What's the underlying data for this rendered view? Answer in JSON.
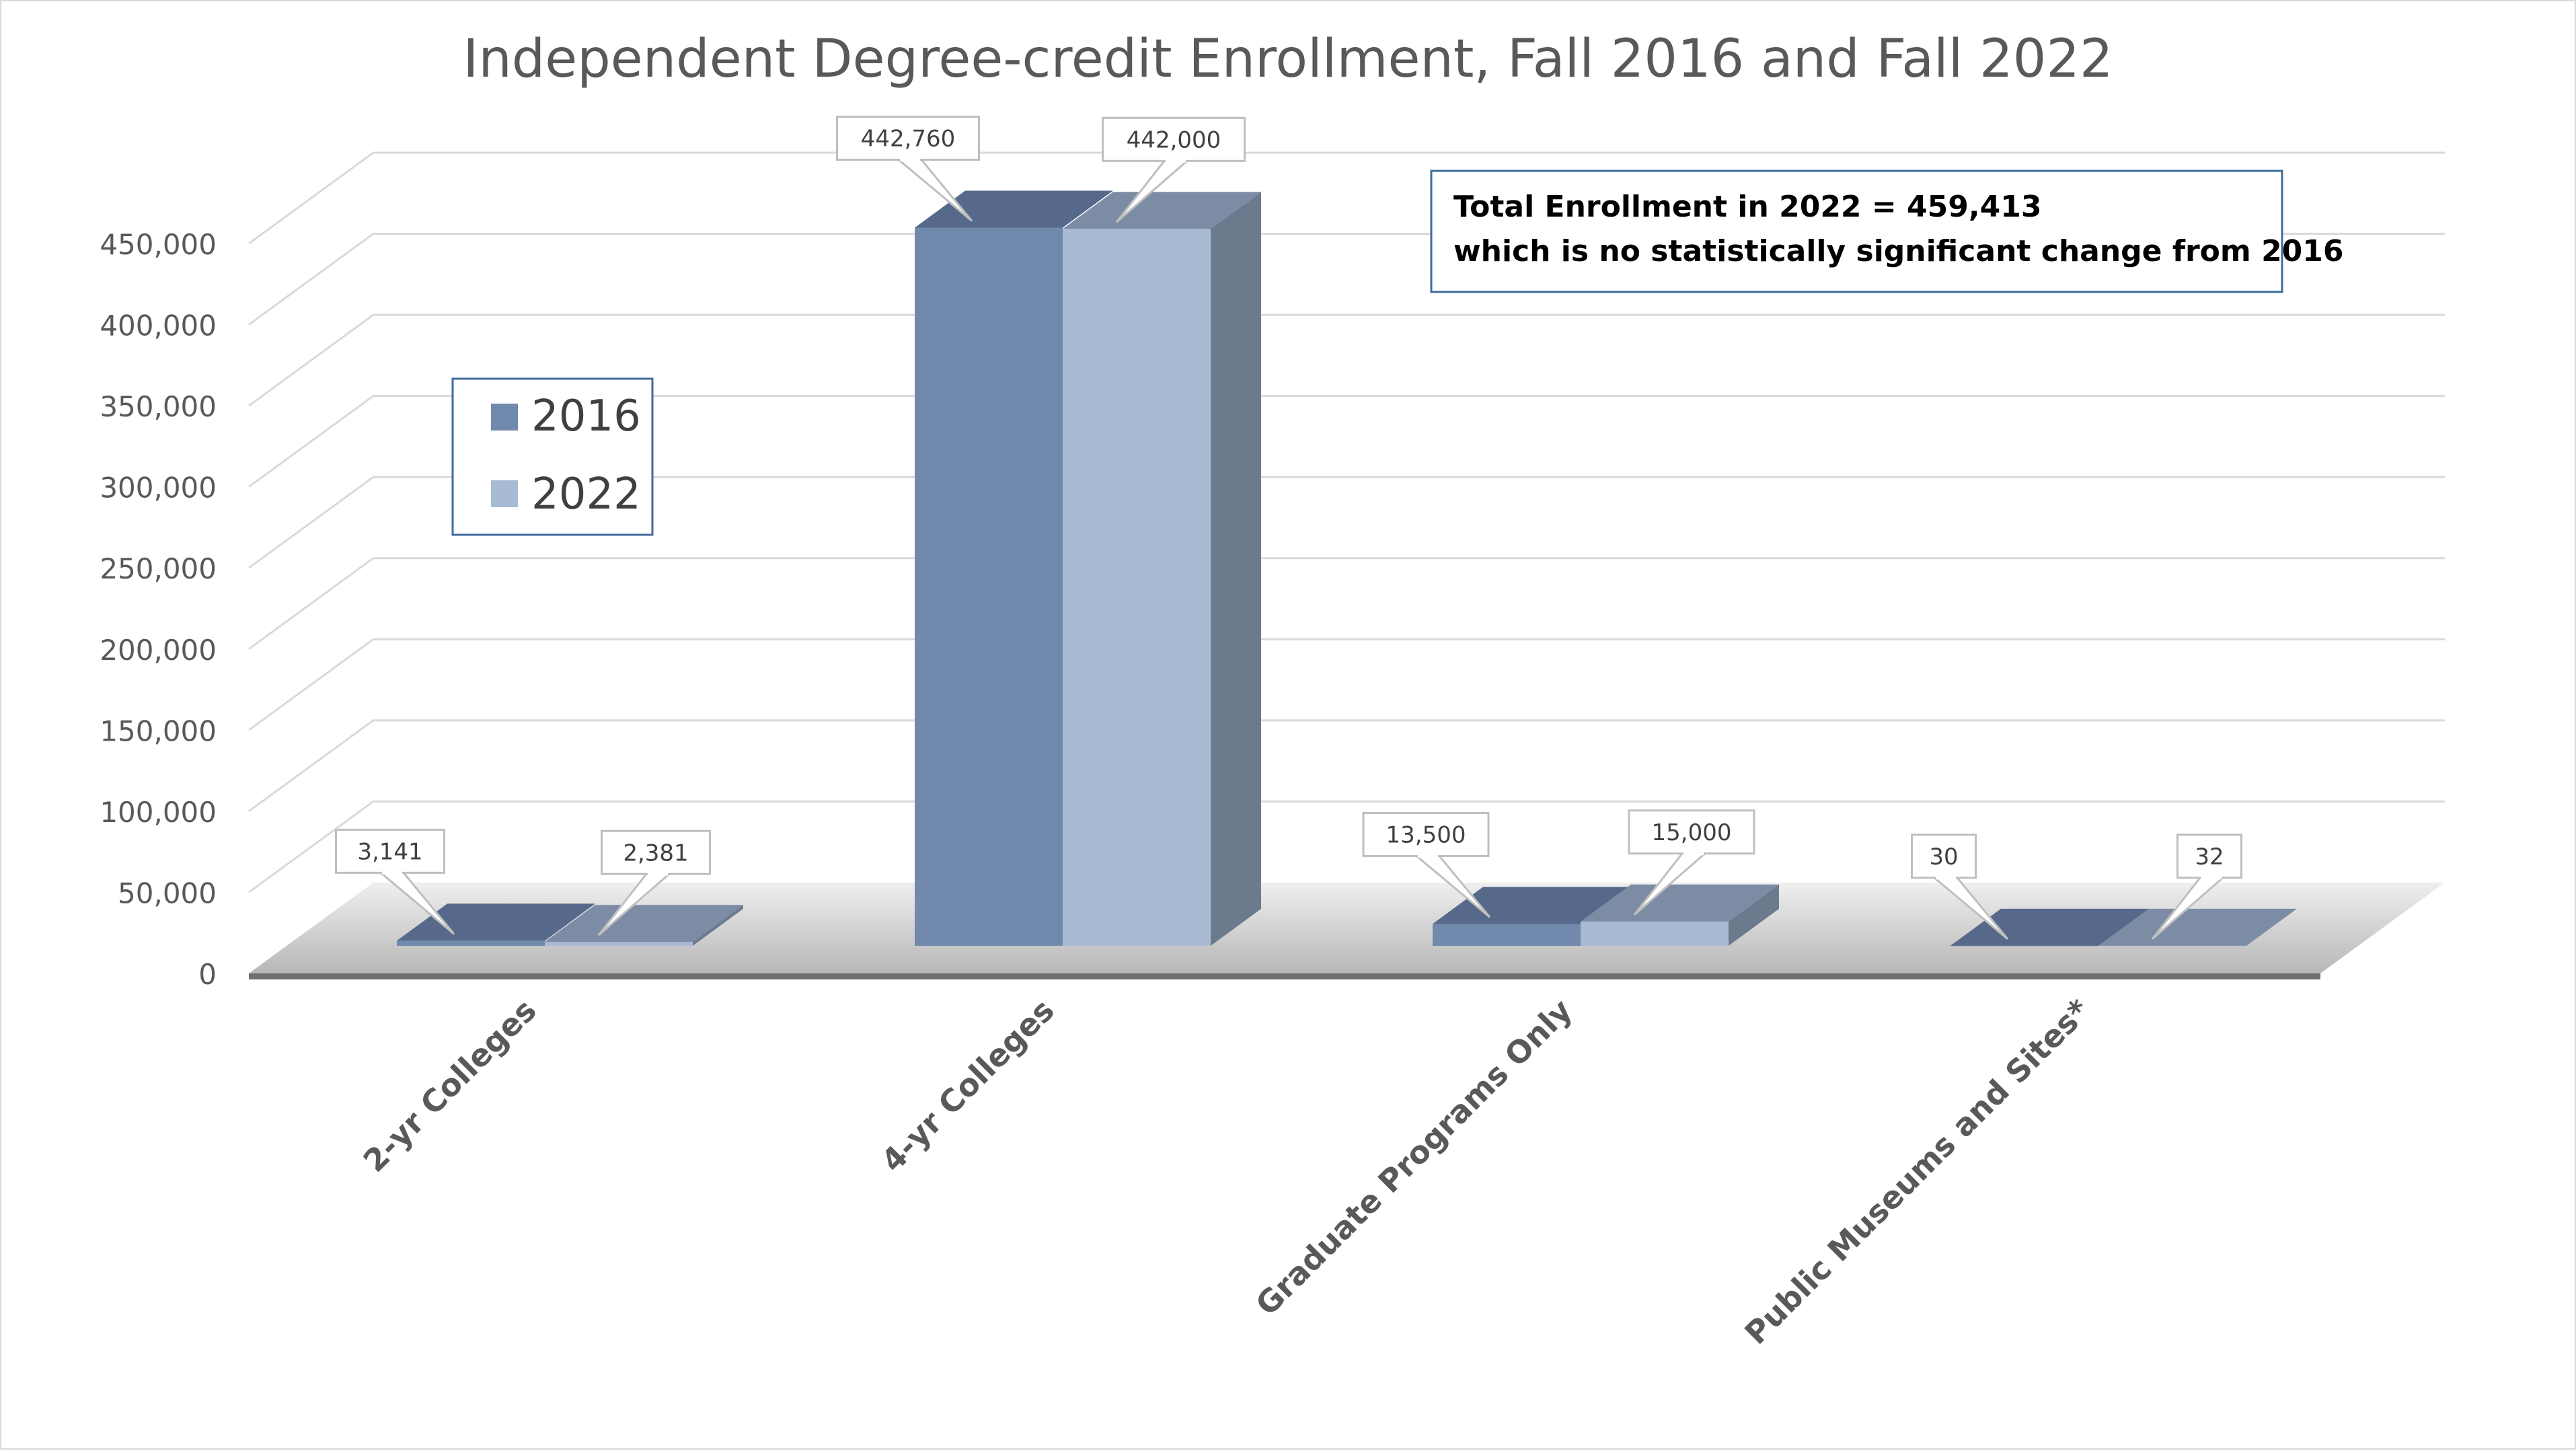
{
  "chart_data": {
    "type": "bar",
    "title": "Independent Degree-credit Enrollment, Fall 2016 and Fall 2022",
    "categories": [
      "2-yr Colleges",
      "4-yr Colleges",
      "Graduate Programs Only",
      "Public Museums and Sites*"
    ],
    "series": [
      {
        "name": "2016",
        "values": [
          3141,
          442760,
          13500,
          30
        ],
        "labels": [
          "3,141",
          "442,760",
          "13,500",
          "30"
        ],
        "color": "#7189ac"
      },
      {
        "name": "2022",
        "values": [
          2381,
          442000,
          15000,
          32
        ],
        "labels": [
          "2,381",
          "442,000",
          "15,000",
          "32"
        ],
        "color": "#a9bad3"
      }
    ],
    "y_ticks": [
      "0",
      "50,000",
      "100,000",
      "150,000",
      "200,000",
      "250,000",
      "300,000",
      "350,000",
      "400,000",
      "450,000"
    ],
    "ylim": [
      0,
      450000
    ],
    "grid": true,
    "legend": "left",
    "annotation": {
      "line1": "Total Enrollment in 2022 = 459,413",
      "line2": "which is no statistically significant change from 2016"
    }
  }
}
